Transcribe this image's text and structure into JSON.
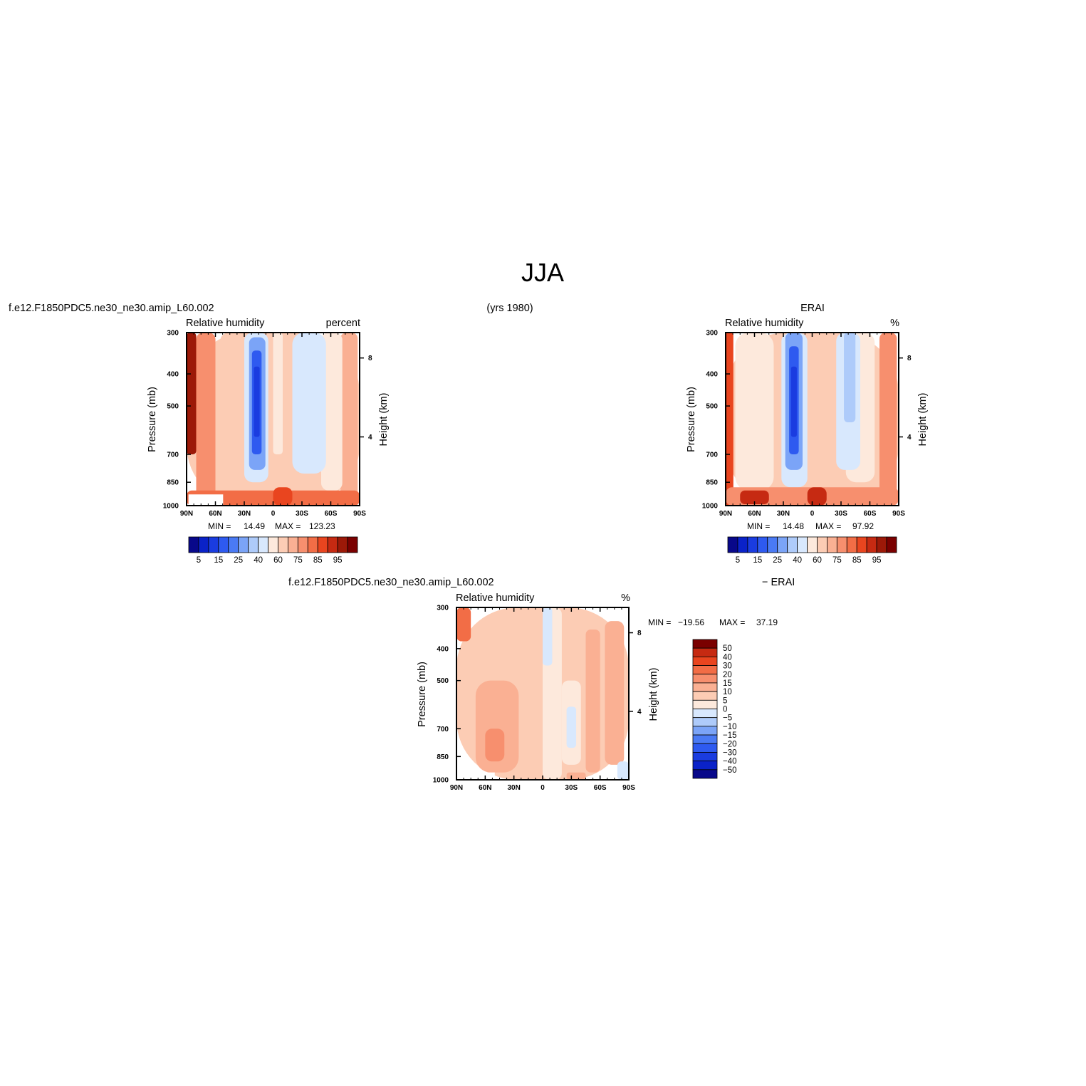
{
  "figure": {
    "title": "JJA",
    "years": "(yrs  1980)"
  },
  "colors": {
    "rh_levels": [
      "#08088a",
      "#0a22c8",
      "#1a3ce0",
      "#2e5af0",
      "#4a7af4",
      "#7ba4f7",
      "#aecbfa",
      "#d8e8fd",
      "#fde9dc",
      "#fcccb4",
      "#fab093",
      "#f78f6e",
      "#f26d46",
      "#e9451f",
      "#c62a12",
      "#9c1908",
      "#7a0000"
    ],
    "diff_levels": [
      "#08088a",
      "#0a22c8",
      "#1a3ce0",
      "#2e5af0",
      "#4a7af4",
      "#7ba4f7",
      "#aecbfa",
      "#d8e8fd",
      "#fde9dc",
      "#fcccb4",
      "#fab093",
      "#f78f6e",
      "#f26d46",
      "#e9451f",
      "#c62a12",
      "#7a0000"
    ]
  },
  "chart_data": [
    {
      "type": "heatmap",
      "case": "f.e12.F1850PDC5.ne30_ne30.amip_L60.002",
      "variable": "Relative  humidity",
      "units": "percent",
      "ylabel": "Pressure  (mb)",
      "ylabel_right": "Height  (km)",
      "x_ticks": [
        "90N",
        "60N",
        "30N",
        "0",
        "30S",
        "60S",
        "90S"
      ],
      "y_ticks": [
        "300",
        "400",
        "500",
        "700",
        "850",
        "1000"
      ],
      "height_ticks": [
        "8",
        "4"
      ],
      "ylim": [
        1000,
        300
      ],
      "stats": {
        "min_label": "MIN =",
        "min": "14.49",
        "max_label": "MAX =",
        "max": "123.23"
      },
      "colorbar_labels": [
        "5",
        "15",
        "25",
        "40",
        "60",
        "75",
        "85",
        "95"
      ],
      "regions": [
        {
          "lat": [
            -90,
            90
          ],
          "p": [
            300,
            1000
          ],
          "value": 65
        },
        {
          "lat": [
            -88,
            -70
          ],
          "p": [
            300,
            1000
          ],
          "value": 72
        },
        {
          "lat": [
            -72,
            -50
          ],
          "p": [
            300,
            900
          ],
          "value": 58
        },
        {
          "lat": [
            -55,
            -20
          ],
          "p": [
            300,
            800
          ],
          "value": 45
        },
        {
          "lat": [
            -40,
            -25
          ],
          "p": [
            300,
            700
          ],
          "value": 40
        },
        {
          "lat": [
            -20,
            -10
          ],
          "p": [
            300,
            750
          ],
          "value": 60
        },
        {
          "lat": [
            -10,
            0
          ],
          "p": [
            300,
            700
          ],
          "value": 52
        },
        {
          "lat": [
            5,
            30
          ],
          "p": [
            300,
            850
          ],
          "value": 40
        },
        {
          "lat": [
            8,
            25
          ],
          "p": [
            310,
            780
          ],
          "value": 25
        },
        {
          "lat": [
            12,
            22
          ],
          "p": [
            340,
            700
          ],
          "value": 15
        },
        {
          "lat": [
            14,
            20
          ],
          "p": [
            380,
            620
          ],
          "value": 10
        },
        {
          "lat": [
            30,
            55
          ],
          "p": [
            300,
            900
          ],
          "value": 60
        },
        {
          "lat": [
            60,
            80
          ],
          "p": [
            300,
            1000
          ],
          "value": 78
        },
        {
          "lat": [
            80,
            90
          ],
          "p": [
            300,
            700
          ],
          "value": 95
        },
        {
          "lat": [
            -90,
            90
          ],
          "p": [
            900,
            1000
          ],
          "value": 80
        },
        {
          "lat": [
            -20,
            0
          ],
          "p": [
            880,
            1000
          ],
          "value": 88
        }
      ],
      "missing": [
        {
          "lat": [
            52,
            88
          ],
          "p": [
            925,
            1000
          ]
        }
      ]
    },
    {
      "type": "heatmap",
      "case": "ERAI",
      "variable": "Relative  humidity",
      "units": "%",
      "ylabel": "Pressure  (mb)",
      "ylabel_right": "Height  (km)",
      "x_ticks": [
        "90N",
        "60N",
        "30N",
        "0",
        "30S",
        "60S",
        "90S"
      ],
      "y_ticks": [
        "300",
        "400",
        "500",
        "700",
        "850",
        "1000"
      ],
      "height_ticks": [
        "8",
        "4"
      ],
      "ylim": [
        1000,
        300
      ],
      "stats": {
        "min_label": "MIN =",
        "min": "14.48",
        "max_label": "MAX =",
        "max": "97.92"
      },
      "colorbar_labels": [
        "5",
        "15",
        "25",
        "40",
        "60",
        "75",
        "85",
        "95"
      ],
      "regions": [
        {
          "lat": [
            -90,
            90
          ],
          "p": [
            300,
            1000
          ],
          "value": 62
        },
        {
          "lat": [
            -88,
            -70
          ],
          "p": [
            300,
            1000
          ],
          "value": 75
        },
        {
          "lat": [
            -65,
            -35
          ],
          "p": [
            300,
            850
          ],
          "value": 55
        },
        {
          "lat": [
            -50,
            -25
          ],
          "p": [
            300,
            780
          ],
          "value": 45
        },
        {
          "lat": [
            -45,
            -33
          ],
          "p": [
            300,
            560
          ],
          "value": 35
        },
        {
          "lat": [
            5,
            32
          ],
          "p": [
            300,
            880
          ],
          "value": 40
        },
        {
          "lat": [
            10,
            28
          ],
          "p": [
            300,
            780
          ],
          "value": 25
        },
        {
          "lat": [
            14,
            24
          ],
          "p": [
            330,
            700
          ],
          "value": 15
        },
        {
          "lat": [
            16,
            22
          ],
          "p": [
            380,
            620
          ],
          "value": 10
        },
        {
          "lat": [
            40,
            80
          ],
          "p": [
            300,
            900
          ],
          "value": 58
        },
        {
          "lat": [
            82,
            90
          ],
          "p": [
            300,
            1000
          ],
          "value": 85
        },
        {
          "lat": [
            -90,
            90
          ],
          "p": [
            880,
            1000
          ],
          "value": 78
        },
        {
          "lat": [
            -15,
            5
          ],
          "p": [
            880,
            1000
          ],
          "value": 90
        },
        {
          "lat": [
            45,
            75
          ],
          "p": [
            900,
            990
          ],
          "value": 90
        }
      ],
      "missing": []
    },
    {
      "type": "heatmap",
      "case": "f.e12.F1850PDC5.ne30_ne30.amip_L60.002",
      "case_suffix": "−  ERAI",
      "variable": "Relative  humidity",
      "units": "%",
      "ylabel": "Pressure  (mb)",
      "ylabel_right": "Height  (km)",
      "x_ticks": [
        "90N",
        "60N",
        "30N",
        "0",
        "30S",
        "60S",
        "90S"
      ],
      "y_ticks": [
        "300",
        "400",
        "500",
        "700",
        "850",
        "1000"
      ],
      "height_ticks": [
        "8",
        "4"
      ],
      "ylim": [
        1000,
        300
      ],
      "stats": {
        "min_label": "MIN = ",
        "min": "−19.56",
        "max_label": "MAX =",
        "max": "37.19"
      },
      "colorbar_labels": [
        "50",
        "40",
        "30",
        "20",
        "15",
        "10",
        "5",
        "0",
        "−5",
        "−10",
        "−15",
        "−20",
        "−30",
        "−40",
        "−50"
      ],
      "regions": [
        {
          "lat": [
            -90,
            90
          ],
          "p": [
            300,
            1000
          ],
          "value": 7
        },
        {
          "lat": [
            -85,
            -65
          ],
          "p": [
            330,
            900
          ],
          "value": 12
        },
        {
          "lat": [
            -60,
            -45
          ],
          "p": [
            350,
            950
          ],
          "value": 12
        },
        {
          "lat": [
            -40,
            -20
          ],
          "p": [
            500,
            900
          ],
          "value": 2
        },
        {
          "lat": [
            -20,
            0
          ],
          "p": [
            300,
            1000
          ],
          "value": 2
        },
        {
          "lat": [
            -10,
            0
          ],
          "p": [
            300,
            450
          ],
          "value": -2
        },
        {
          "lat": [
            -35,
            -25
          ],
          "p": [
            600,
            800
          ],
          "value": -2
        },
        {
          "lat": [
            -90,
            -78
          ],
          "p": [
            880,
            1000
          ],
          "value": -2
        },
        {
          "lat": [
            25,
            70
          ],
          "p": [
            500,
            950
          ],
          "value": 12
        },
        {
          "lat": [
            40,
            60
          ],
          "p": [
            700,
            880
          ],
          "value": 17
        },
        {
          "lat": [
            75,
            90
          ],
          "p": [
            300,
            380
          ],
          "value": 25
        },
        {
          "lat": [
            -45,
            -25
          ],
          "p": [
            950,
            1000
          ],
          "value": 12
        }
      ],
      "missing": [
        {
          "lat": [
            50,
            90
          ],
          "p": [
            950,
            1000
          ]
        }
      ]
    }
  ]
}
